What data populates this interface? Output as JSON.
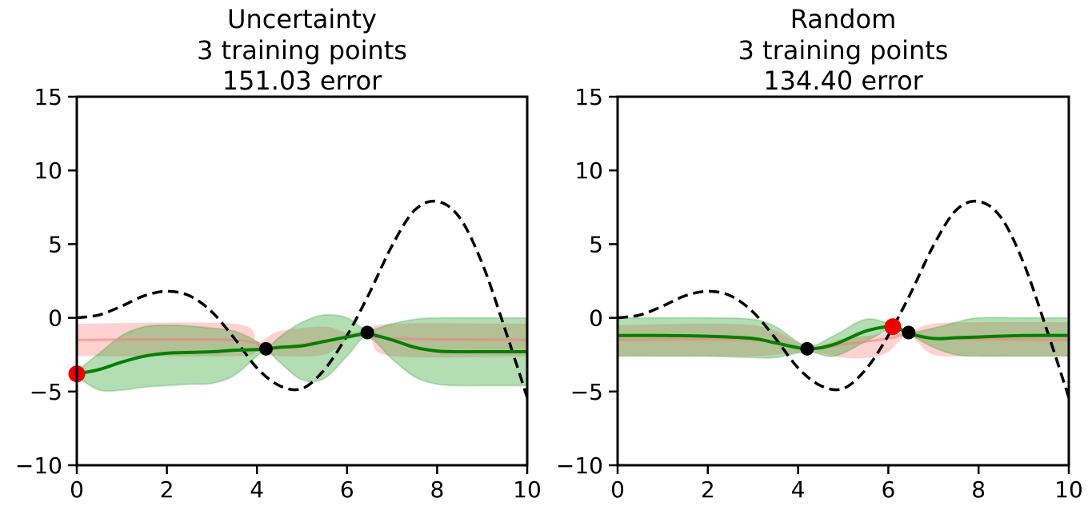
{
  "chart_data": [
    {
      "type": "line",
      "title_lines": [
        "Uncertainty",
        "3 training points",
        "151.03 error"
      ],
      "xlim": [
        0,
        10
      ],
      "ylim": [
        -10,
        15
      ],
      "xticks": [
        0,
        2,
        4,
        6,
        8,
        10
      ],
      "yticks": [
        -10,
        -5,
        0,
        5,
        10,
        15
      ],
      "xtick_labels": [
        "0",
        "2",
        "4",
        "6",
        "8",
        "10"
      ],
      "ytick_labels": [
        "−10",
        "−5",
        "0",
        "5",
        "10",
        "15"
      ],
      "grid": false,
      "colors": {
        "true_function": "#000000",
        "gp_mean": "#008000",
        "gp_band": "#2ca02c",
        "prev_band": "#ff9999",
        "prev_mean": "#f08080",
        "new_point": "#ee0000",
        "train_point": "#000000"
      },
      "gp_band": {
        "x": [
          0,
          0.5,
          1,
          1.5,
          2,
          2.5,
          3,
          3.5,
          4,
          4.2,
          4.5,
          5,
          5.5,
          6,
          6.45,
          7,
          7.5,
          8,
          8.5,
          9,
          9.5,
          10
        ],
        "upper": [
          -3.6,
          -2.4,
          -1.2,
          -0.6,
          -0.5,
          -0.55,
          -0.7,
          -0.9,
          -1.6,
          -2.1,
          -1.3,
          -0.3,
          0.2,
          0.0,
          -0.8,
          -0.4,
          -0.1,
          0.0,
          0.0,
          0.0,
          0.0,
          0.0
        ],
        "lower": [
          -4.0,
          -4.9,
          -4.9,
          -4.7,
          -4.6,
          -4.5,
          -4.45,
          -3.9,
          -2.6,
          -2.2,
          -3.0,
          -4.2,
          -4.1,
          -2.6,
          -1.3,
          -2.8,
          -4.0,
          -4.5,
          -4.6,
          -4.6,
          -4.6,
          -4.6
        ]
      },
      "prev_band": {
        "x": [
          0,
          3.5,
          4.0,
          4.5,
          5.5,
          6.0,
          6.5,
          7.0,
          10
        ],
        "upper": [
          -0.4,
          -0.4,
          -1.6,
          -0.9,
          -0.6,
          -1.0,
          -0.8,
          -0.4,
          -0.4
        ],
        "lower": [
          -2.6,
          -2.6,
          -2.3,
          -2.6,
          -2.5,
          -1.5,
          -1.4,
          -2.6,
          -2.6
        ]
      },
      "prev_mean": {
        "x": [
          0,
          3.5,
          4.2,
          5.0,
          6.0,
          6.45,
          7.0,
          10
        ],
        "y": [
          -1.5,
          -1.5,
          -2.1,
          -1.8,
          -1.3,
          -1.1,
          -1.4,
          -1.5
        ]
      },
      "true_function": {
        "x": [
          0,
          0.5,
          1,
          1.5,
          2,
          2.5,
          3,
          3.5,
          4,
          4.5,
          5,
          5.5,
          6,
          6.5,
          7,
          7.5,
          8,
          8.5,
          9,
          9.5,
          10
        ],
        "y": [
          0,
          0.2,
          0.8,
          1.5,
          1.8,
          1.5,
          0.4,
          -1.4,
          -3.4,
          -4.6,
          -4.8,
          -3.5,
          -1.2,
          1.7,
          4.9,
          7.3,
          7.9,
          6.8,
          3.7,
          -0.7,
          -5.4
        ]
      },
      "gp_mean": {
        "x": [
          0,
          0.5,
          1,
          1.5,
          2,
          2.5,
          3,
          3.5,
          4,
          4.2,
          4.5,
          5,
          5.5,
          6,
          6.45,
          7,
          7.5,
          8,
          8.5,
          9,
          9.5,
          10
        ],
        "y": [
          -3.8,
          -3.5,
          -3.0,
          -2.6,
          -2.4,
          -2.35,
          -2.3,
          -2.2,
          -2.15,
          -2.1,
          -2.0,
          -1.9,
          -1.6,
          -1.3,
          -1.1,
          -1.5,
          -2.0,
          -2.25,
          -2.3,
          -2.3,
          -2.3,
          -2.3
        ]
      },
      "training_points": [
        {
          "x": 4.2,
          "y": -2.1
        },
        {
          "x": 6.45,
          "y": -1.0
        }
      ],
      "new_point": {
        "x": 0.0,
        "y": -3.8
      }
    },
    {
      "type": "line",
      "title_lines": [
        "Random",
        "3 training points",
        "134.40 error"
      ],
      "xlim": [
        0,
        10
      ],
      "ylim": [
        -10,
        15
      ],
      "xticks": [
        0,
        2,
        4,
        6,
        8,
        10
      ],
      "yticks": [
        -10,
        -5,
        0,
        5,
        10,
        15
      ],
      "xtick_labels": [
        "0",
        "2",
        "4",
        "6",
        "8",
        "10"
      ],
      "ytick_labels": [
        "−10",
        "−5",
        "0",
        "5",
        "10",
        "15"
      ],
      "grid": false,
      "colors": {
        "true_function": "#000000",
        "gp_mean": "#008000",
        "gp_band": "#2ca02c",
        "prev_band": "#ff9999",
        "prev_mean": "#f08080",
        "new_point": "#ee0000",
        "train_point": "#000000"
      },
      "gp_band": {
        "x": [
          0,
          1,
          2,
          3,
          3.5,
          4.2,
          4.8,
          5.5,
          6.1,
          6.45,
          7,
          7.5,
          8,
          9,
          10
        ],
        "upper": [
          0.0,
          0.0,
          0.0,
          -0.1,
          -0.6,
          -1.9,
          -1.2,
          -0.1,
          -0.5,
          -1.0,
          -0.7,
          -0.3,
          0.0,
          0.0,
          0.0
        ],
        "lower": [
          -2.6,
          -2.6,
          -2.6,
          -2.7,
          -2.7,
          -2.3,
          -2.6,
          -1.6,
          -0.7,
          -1.1,
          -2.0,
          -2.5,
          -2.6,
          -2.6,
          -2.6
        ]
      },
      "prev_band": {
        "x": [
          0,
          3.0,
          4.2,
          5.0,
          5.6,
          6.0,
          6.45,
          7.0,
          8.0,
          10
        ],
        "upper": [
          -0.5,
          -0.5,
          -1.9,
          -1.4,
          -1.2,
          -1.0,
          -0.9,
          -0.4,
          -0.3,
          -0.3
        ],
        "lower": [
          -2.6,
          -2.6,
          -2.3,
          -2.7,
          -2.7,
          -2.3,
          -1.2,
          -2.5,
          -2.6,
          -2.6
        ]
      },
      "prev_mean": {
        "x": [
          0,
          3.0,
          4.2,
          5.0,
          6.0,
          6.45,
          7.0,
          10
        ],
        "y": [
          -1.5,
          -1.5,
          -2.1,
          -1.8,
          -1.4,
          -1.1,
          -1.4,
          -1.5
        ]
      },
      "true_function": {
        "x": [
          0,
          0.5,
          1,
          1.5,
          2,
          2.5,
          3,
          3.5,
          4,
          4.5,
          5,
          5.5,
          6,
          6.5,
          7,
          7.5,
          8,
          8.5,
          9,
          9.5,
          10
        ],
        "y": [
          0,
          0.2,
          0.8,
          1.5,
          1.8,
          1.5,
          0.4,
          -1.4,
          -3.4,
          -4.6,
          -4.8,
          -3.5,
          -1.2,
          1.7,
          4.9,
          7.3,
          7.9,
          6.8,
          3.7,
          -0.7,
          -5.4
        ]
      },
      "gp_mean": {
        "x": [
          0,
          1,
          2,
          3,
          3.5,
          4.2,
          4.8,
          5.5,
          6.1,
          6.45,
          7,
          7.5,
          8,
          9,
          10
        ],
        "y": [
          -1.2,
          -1.2,
          -1.25,
          -1.4,
          -1.7,
          -2.1,
          -1.8,
          -0.9,
          -0.6,
          -1.05,
          -1.4,
          -1.35,
          -1.3,
          -1.2,
          -1.2
        ]
      },
      "training_points": [
        {
          "x": 4.2,
          "y": -2.1
        },
        {
          "x": 6.45,
          "y": -1.0
        }
      ],
      "new_point": {
        "x": 6.1,
        "y": -0.6
      }
    }
  ]
}
